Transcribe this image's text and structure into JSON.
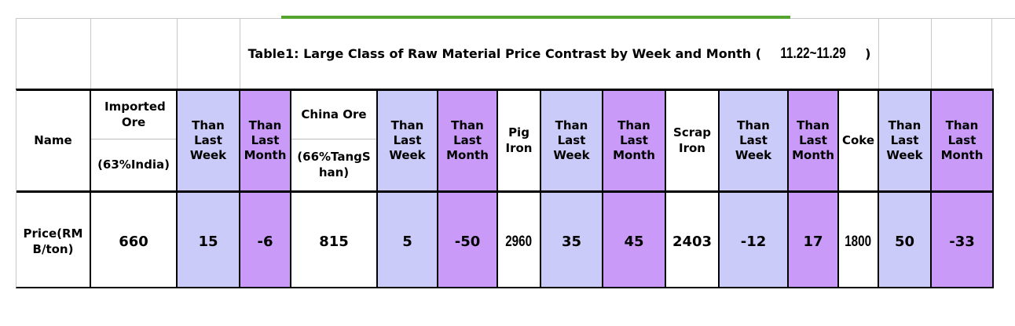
{
  "sheet": {
    "background": "#ffffff",
    "gridline_color": "#c9c9c9",
    "accent_line_color": "#55a42f",
    "table_border_color": "#000000",
    "week_fill_color": "#cbcbf9",
    "month_fill_color": "#c99af7"
  },
  "title": {
    "prefix": "Table1: Large Class of Raw Material Price Contrast by Week and Month (",
    "range": "11.22~11.29",
    "suffix": ")"
  },
  "table": {
    "name_label": "Name",
    "week_label": "Than Last Week",
    "month_label": "Than Last Month",
    "row_label": "Price(RMB/ton)",
    "materials": [
      {
        "name": "Imported Ore",
        "sub": "(63%India)",
        "price": "660",
        "week": "15",
        "month": "-6"
      },
      {
        "name": "China Ore",
        "sub": "(66%TangShan)",
        "price": "815",
        "week": "5",
        "month": "-50"
      },
      {
        "name": "Pig Iron",
        "price": "2960",
        "week": "35",
        "month": "45"
      },
      {
        "name": "Scrap Iron",
        "price": "2403",
        "week": "-12",
        "month": "17"
      },
      {
        "name": "Coke",
        "price": "1800",
        "week": "50",
        "month": "-33"
      }
    ]
  }
}
